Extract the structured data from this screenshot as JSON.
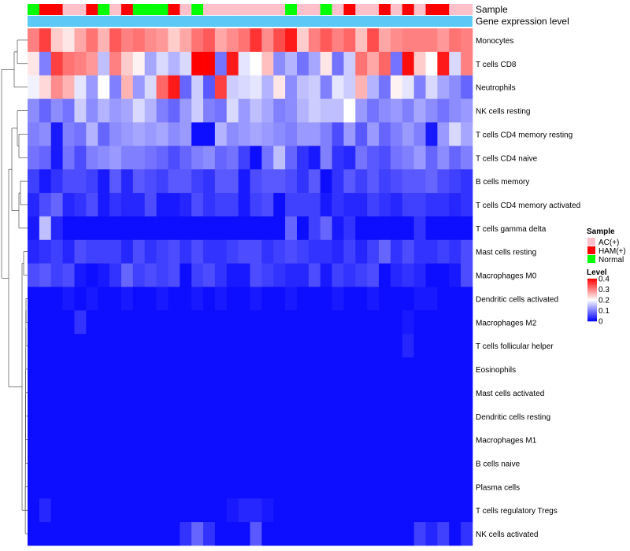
{
  "chart_data": {
    "type": "heatmap",
    "title": "",
    "annotations": {
      "sample_track_label": "Sample",
      "expression_track_label": "Gene expression level"
    },
    "samples": [
      "Normal",
      "HAM(+)",
      "HAM(+)",
      "AC(+)",
      "AC(+)",
      "HAM(+)",
      "Normal",
      "AC(+)",
      "HAM(+)",
      "Normal",
      "Normal",
      "Normal",
      "HAM(+)",
      "AC(+)",
      "Normal",
      "AC(+)",
      "AC(+)",
      "AC(+)",
      "AC(+)",
      "AC(+)",
      "AC(+)",
      "AC(+)",
      "Normal",
      "AC(+)",
      "AC(+)",
      "Normal",
      "AC(+)",
      "HAM(+)",
      "AC(+)",
      "AC(+)",
      "HAM(+)",
      "AC(+)",
      "HAM(+)",
      "AC(+)",
      "HAM(+)",
      "HAM(+)",
      "AC(+)",
      "AC(+)"
    ],
    "sample_colors": {
      "AC(+)": "#FFC0CB",
      "HAM(+)": "#FF0000",
      "Normal": "#00FF00"
    },
    "rows": [
      "Monocytes",
      "T cells CD8",
      "Neutrophils",
      "NK cells resting",
      "T cells CD4 memory resting",
      "T cells CD4 naive",
      "B cells memory",
      "T cells CD4 memory activated",
      "T cells gamma delta",
      "Mast cells resting",
      "Macrophages M0",
      "Dendritic cells activated",
      "Macrophages M2",
      "T cells follicular helper",
      "Eosinophils",
      "Mast cells activated",
      "Dendritic cells resting",
      "Macrophages M1",
      "B cells naive",
      "Plasma cells",
      "T cells regulatory  Tregs",
      "NK cells activated"
    ],
    "values": [
      [
        0.3,
        0.35,
        0.24,
        0.22,
        0.27,
        0.31,
        0.26,
        0.33,
        0.3,
        0.31,
        0.29,
        0.28,
        0.24,
        0.27,
        0.31,
        0.33,
        0.27,
        0.29,
        0.31,
        0.36,
        0.29,
        0.34,
        0.38,
        0.24,
        0.3,
        0.33,
        0.3,
        0.32,
        0.25,
        0.34,
        0.27,
        0.29,
        0.3,
        0.3,
        0.3,
        0.28,
        0.31,
        0.3
      ],
      [
        0.22,
        0.1,
        0.35,
        0.31,
        0.3,
        0.28,
        0.15,
        0.3,
        0.24,
        0.21,
        0.13,
        0.17,
        0.14,
        0.17,
        0.4,
        0.4,
        0.09,
        0.38,
        0.18,
        0.2,
        0.25,
        0.11,
        0.14,
        0.09,
        0.13,
        0.22,
        0.09,
        0.16,
        0.31,
        0.27,
        0.32,
        0.09,
        0.39,
        0.24,
        0.2,
        0.38,
        0.17,
        0.3
      ],
      [
        0.19,
        0.23,
        0.29,
        0.26,
        0.18,
        0.12,
        0.2,
        0.1,
        0.26,
        0.12,
        0.17,
        0.32,
        0.38,
        0.08,
        0.16,
        0.07,
        0.35,
        0.16,
        0.17,
        0.18,
        0.14,
        0.22,
        0.11,
        0.15,
        0.16,
        0.1,
        0.18,
        0.16,
        0.26,
        0.14,
        0.09,
        0.21,
        0.18,
        0.1,
        0.17,
        0.13,
        0.11,
        0.08
      ],
      [
        0.11,
        0.08,
        0.11,
        0.09,
        0.16,
        0.11,
        0.14,
        0.12,
        0.13,
        0.17,
        0.14,
        0.1,
        0.08,
        0.12,
        0.16,
        0.1,
        0.09,
        0.17,
        0.12,
        0.15,
        0.13,
        0.1,
        0.11,
        0.14,
        0.16,
        0.15,
        0.15,
        0.2,
        0.12,
        0.09,
        0.11,
        0.12,
        0.1,
        0.13,
        0.11,
        0.09,
        0.11,
        0.12
      ],
      [
        0.1,
        0.11,
        0.02,
        0.1,
        0.09,
        0.14,
        0.08,
        0.11,
        0.12,
        0.13,
        0.12,
        0.13,
        0.11,
        0.12,
        0.01,
        0.01,
        0.14,
        0.11,
        0.12,
        0.13,
        0.12,
        0.11,
        0.1,
        0.12,
        0.12,
        0.1,
        0.06,
        0.12,
        0.07,
        0.12,
        0.08,
        0.1,
        0.12,
        0.1,
        0.02,
        0.12,
        0.17,
        0.13
      ],
      [
        0.09,
        0.08,
        0.02,
        0.09,
        0.06,
        0.1,
        0.11,
        0.12,
        0.1,
        0.1,
        0.09,
        0.08,
        0.06,
        0.08,
        0.1,
        0.11,
        0.08,
        0.09,
        0.05,
        0.01,
        0.09,
        0.15,
        0.08,
        0.04,
        0.02,
        0.1,
        0.04,
        0.03,
        0.09,
        0.07,
        0.06,
        0.09,
        0.1,
        0.12,
        0.08,
        0.11,
        0.08,
        0.1
      ],
      [
        0.05,
        0.02,
        0.04,
        0.06,
        0.06,
        0.05,
        0.02,
        0.07,
        0.03,
        0.07,
        0.06,
        0.05,
        0.07,
        0.07,
        0.05,
        0.04,
        0.07,
        0.07,
        0.02,
        0.06,
        0.07,
        0.07,
        0.06,
        0.04,
        0.07,
        0.01,
        0.04,
        0.07,
        0.05,
        0.07,
        0.05,
        0.06,
        0.07,
        0.07,
        0.08,
        0.06,
        0.05,
        0.04
      ],
      [
        0.03,
        0.06,
        0.08,
        0.03,
        0.04,
        0.06,
        0.02,
        0.04,
        0.03,
        0.03,
        0.06,
        0.02,
        0.02,
        0.03,
        0.06,
        0.04,
        0.05,
        0.05,
        0.02,
        0.05,
        0.06,
        0.01,
        0.05,
        0.05,
        0.05,
        0.02,
        0.04,
        0.03,
        0.03,
        0.05,
        0.04,
        0.03,
        0.05,
        0.05,
        0.04,
        0.04,
        0.03,
        0.04
      ],
      [
        0.02,
        0.15,
        0.03,
        0.01,
        0.01,
        0.01,
        0.01,
        0.01,
        0.01,
        0.01,
        0.01,
        0.01,
        0.01,
        0.01,
        0.01,
        0.01,
        0.01,
        0.01,
        0.01,
        0.01,
        0.01,
        0.01,
        0.08,
        0.01,
        0.05,
        0.08,
        0.02,
        0.04,
        0.01,
        0.01,
        0.01,
        0.01,
        0.01,
        0.04,
        0.01,
        0.01,
        0.01,
        0.01
      ],
      [
        0.03,
        0.04,
        0.05,
        0.03,
        0.06,
        0.05,
        0.05,
        0.05,
        0.03,
        0.06,
        0.04,
        0.05,
        0.06,
        0.04,
        0.06,
        0.04,
        0.04,
        0.05,
        0.06,
        0.06,
        0.04,
        0.05,
        0.06,
        0.05,
        0.04,
        0.04,
        0.03,
        0.05,
        0.03,
        0.05,
        0.08,
        0.04,
        0.06,
        0.04,
        0.04,
        0.05,
        0.04,
        0.06
      ],
      [
        0.06,
        0.07,
        0.05,
        0.06,
        0.02,
        0.01,
        0.02,
        0.04,
        0.08,
        0.05,
        0.06,
        0.05,
        0.06,
        0.01,
        0.05,
        0.06,
        0.04,
        0.02,
        0.02,
        0.06,
        0.05,
        0.04,
        0.03,
        0.03,
        0.06,
        0.02,
        0.05,
        0.04,
        0.05,
        0.06,
        0.01,
        0.03,
        0.04,
        0.03,
        0.01,
        0.01,
        0.02,
        0.06
      ],
      [
        0.01,
        0.01,
        0.01,
        0.02,
        0.01,
        0.02,
        0.01,
        0.01,
        0.02,
        0.01,
        0.01,
        0.02,
        0.01,
        0.01,
        0.02,
        0.01,
        0.02,
        0.01,
        0.01,
        0.02,
        0.01,
        0.01,
        0.02,
        0.01,
        0.01,
        0.01,
        0.02,
        0.01,
        0.01,
        0.02,
        0.01,
        0.01,
        0.01,
        0.02,
        0.02,
        0.01,
        0.01,
        0.01
      ],
      [
        0.01,
        0.01,
        0.01,
        0.01,
        0.04,
        0.01,
        0.01,
        0.01,
        0.01,
        0.01,
        0.01,
        0.01,
        0.01,
        0.01,
        0.01,
        0.01,
        0.01,
        0.01,
        0.01,
        0.01,
        0.01,
        0.01,
        0.01,
        0.01,
        0.01,
        0.01,
        0.01,
        0.01,
        0.01,
        0.01,
        0.01,
        0.01,
        0.02,
        0.01,
        0.01,
        0.01,
        0.01,
        0.01
      ],
      [
        0.01,
        0.01,
        0.01,
        0.01,
        0.01,
        0.01,
        0.01,
        0.01,
        0.01,
        0.01,
        0.01,
        0.01,
        0.01,
        0.01,
        0.01,
        0.01,
        0.01,
        0.01,
        0.01,
        0.01,
        0.01,
        0.01,
        0.01,
        0.01,
        0.01,
        0.01,
        0.01,
        0.01,
        0.01,
        0.01,
        0.01,
        0.01,
        0.03,
        0.01,
        0.01,
        0.01,
        0.01,
        0.01
      ],
      [
        0.01,
        0.01,
        0.01,
        0.01,
        0.01,
        0.01,
        0.01,
        0.01,
        0.01,
        0.01,
        0.01,
        0.01,
        0.01,
        0.01,
        0.01,
        0.01,
        0.01,
        0.01,
        0.01,
        0.01,
        0.01,
        0.01,
        0.01,
        0.01,
        0.01,
        0.01,
        0.01,
        0.01,
        0.01,
        0.01,
        0.01,
        0.01,
        0.01,
        0.01,
        0.01,
        0.01,
        0.01,
        0.01
      ],
      [
        0.01,
        0.01,
        0.01,
        0.01,
        0.01,
        0.01,
        0.01,
        0.01,
        0.01,
        0.01,
        0.01,
        0.01,
        0.01,
        0.01,
        0.01,
        0.01,
        0.01,
        0.01,
        0.01,
        0.01,
        0.01,
        0.01,
        0.01,
        0.01,
        0.01,
        0.01,
        0.01,
        0.01,
        0.01,
        0.01,
        0.01,
        0.01,
        0.01,
        0.01,
        0.01,
        0.01,
        0.01,
        0.01
      ],
      [
        0.01,
        0.01,
        0.01,
        0.01,
        0.01,
        0.01,
        0.01,
        0.01,
        0.01,
        0.01,
        0.01,
        0.01,
        0.01,
        0.01,
        0.01,
        0.01,
        0.01,
        0.01,
        0.01,
        0.01,
        0.01,
        0.01,
        0.01,
        0.01,
        0.01,
        0.01,
        0.01,
        0.01,
        0.01,
        0.01,
        0.01,
        0.01,
        0.01,
        0.01,
        0.01,
        0.01,
        0.01,
        0.01
      ],
      [
        0.01,
        0.01,
        0.01,
        0.01,
        0.01,
        0.01,
        0.01,
        0.01,
        0.01,
        0.01,
        0.01,
        0.01,
        0.01,
        0.01,
        0.01,
        0.01,
        0.01,
        0.01,
        0.01,
        0.01,
        0.01,
        0.01,
        0.01,
        0.01,
        0.01,
        0.01,
        0.01,
        0.01,
        0.01,
        0.01,
        0.01,
        0.01,
        0.01,
        0.01,
        0.01,
        0.01,
        0.01,
        0.01
      ],
      [
        0.01,
        0.01,
        0.01,
        0.01,
        0.01,
        0.01,
        0.01,
        0.01,
        0.01,
        0.01,
        0.01,
        0.01,
        0.01,
        0.01,
        0.01,
        0.01,
        0.01,
        0.01,
        0.01,
        0.01,
        0.01,
        0.01,
        0.01,
        0.01,
        0.01,
        0.01,
        0.01,
        0.01,
        0.01,
        0.01,
        0.01,
        0.01,
        0.01,
        0.01,
        0.01,
        0.01,
        0.01,
        0.01
      ],
      [
        0.01,
        0.01,
        0.01,
        0.01,
        0.01,
        0.01,
        0.01,
        0.01,
        0.01,
        0.01,
        0.01,
        0.01,
        0.01,
        0.01,
        0.01,
        0.01,
        0.01,
        0.01,
        0.01,
        0.01,
        0.01,
        0.01,
        0.01,
        0.01,
        0.01,
        0.01,
        0.01,
        0.01,
        0.01,
        0.01,
        0.01,
        0.01,
        0.01,
        0.01,
        0.01,
        0.01,
        0.01,
        0.01
      ],
      [
        0.01,
        0.03,
        0.01,
        0.01,
        0.01,
        0.01,
        0.01,
        0.01,
        0.01,
        0.01,
        0.01,
        0.01,
        0.01,
        0.01,
        0.01,
        0.01,
        0.01,
        0.02,
        0.03,
        0.03,
        0.02,
        0.01,
        0.01,
        0.01,
        0.01,
        0.01,
        0.01,
        0.01,
        0.01,
        0.01,
        0.01,
        0.01,
        0.01,
        0.01,
        0.01,
        0.01,
        0.01,
        0.01
      ],
      [
        0.01,
        0.01,
        0.01,
        0.01,
        0.01,
        0.01,
        0.01,
        0.01,
        0.01,
        0.01,
        0.01,
        0.01,
        0.01,
        0.04,
        0.08,
        0.04,
        0.01,
        0.01,
        0.01,
        0.07,
        0.01,
        0.01,
        0.01,
        0.01,
        0.01,
        0.01,
        0.01,
        0.01,
        0.01,
        0.01,
        0.01,
        0.01,
        0.01,
        0.05,
        0.03,
        0.05,
        0.01,
        0.04
      ]
    ],
    "legend_sample": {
      "title": "Sample",
      "entries": [
        "AC(+)",
        "HAM(+)",
        "Normal"
      ]
    },
    "legend_level": {
      "title": "Level",
      "ticks": [
        "0.4",
        "0.3",
        "0.2",
        "0.1",
        "0"
      ],
      "range": [
        0,
        0.4
      ]
    },
    "colors": {
      "low": "#0000FF",
      "mid": "#FFFFFF",
      "high": "#FF0000",
      "expression_bar": "#5BC8F5"
    }
  }
}
